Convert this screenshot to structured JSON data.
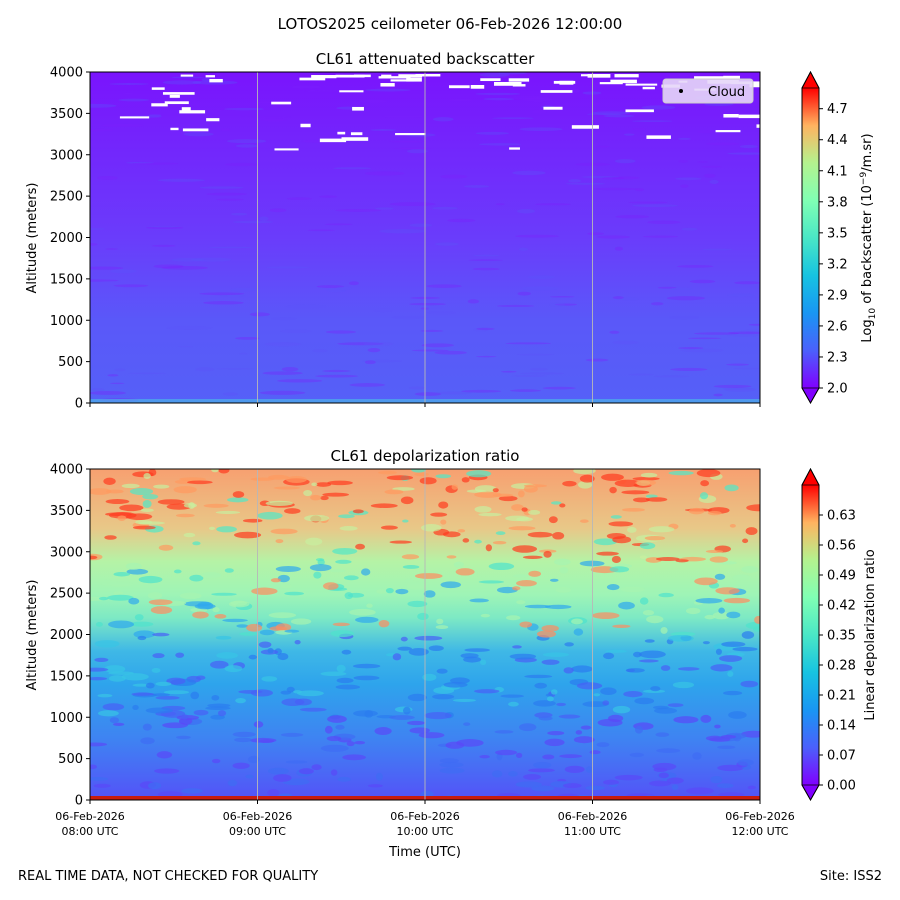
{
  "figure": {
    "suptitle": "LOTOS2025 ceilometer 06-Feb-2026 12:00:00",
    "footer_left": "REAL TIME DATA, NOT CHECKED FOR QUALITY",
    "footer_right": "Site: ISS2"
  },
  "chart_data": [
    {
      "type": "heatmap",
      "title": "CL61 attenuated backscatter",
      "xlabel": "",
      "ylabel": "Altitude (meters)",
      "x_range": [
        "06-Feb-2026 08:00 UTC",
        "06-Feb-2026 12:00 UTC"
      ],
      "ylim": [
        0,
        4000
      ],
      "yticks": [
        0,
        500,
        1000,
        1500,
        2000,
        2500,
        3000,
        3500,
        4000
      ],
      "grid": "vertical lines at hourly ticks",
      "colorbar": {
        "label_main": "Log",
        "label_sub": "10",
        "label_rest": " of backscatter (10",
        "label_exp": "−9",
        "label_end": "/m.sr)",
        "range": [
          2.0,
          4.9
        ],
        "ticks": [
          "2.0",
          "2.3",
          "2.6",
          "2.9",
          "3.2",
          "3.5",
          "3.8",
          "4.1",
          "4.4",
          "4.7"
        ],
        "colormap": "rainbow"
      },
      "legend": {
        "label": "Cloud",
        "location": "upper right"
      },
      "field_summary": [
        {
          "altitude_range": [
            0,
            1000
          ],
          "value": 2.35
        },
        {
          "altitude_range": [
            1000,
            1800
          ],
          "value": 2.2
        },
        {
          "altitude_range": [
            1800,
            4000
          ],
          "value": 2.05
        }
      ]
    },
    {
      "type": "heatmap",
      "title": "CL61 depolarization ratio",
      "xlabel": "Time (UTC)",
      "ylabel": "Altitude (meters)",
      "xticks": [
        {
          "date": "06-Feb-2026",
          "time": "08:00 UTC"
        },
        {
          "date": "06-Feb-2026",
          "time": "09:00 UTC"
        },
        {
          "date": "06-Feb-2026",
          "time": "10:00 UTC"
        },
        {
          "date": "06-Feb-2026",
          "time": "11:00 UTC"
        },
        {
          "date": "06-Feb-2026",
          "time": "12:00 UTC"
        }
      ],
      "ylim": [
        0,
        4000
      ],
      "yticks": [
        0,
        500,
        1000,
        1500,
        2000,
        2500,
        3000,
        3500,
        4000
      ],
      "grid": "vertical lines at hourly ticks",
      "colorbar": {
        "label": "Linear depolarization ratio",
        "range": [
          0.0,
          0.7
        ],
        "ticks": [
          "0.00",
          "0.07",
          "0.14",
          "0.21",
          "0.28",
          "0.35",
          "0.42",
          "0.49",
          "0.56",
          "0.63"
        ],
        "colormap": "rainbow"
      },
      "field_summary": [
        {
          "altitude_range": [
            0,
            50
          ],
          "value": 0.7
        },
        {
          "altitude_range": [
            50,
            1000
          ],
          "value": 0.1
        },
        {
          "altitude_range": [
            1000,
            2000
          ],
          "value": 0.17
        },
        {
          "altitude_range": [
            2000,
            2800
          ],
          "value": 0.3
        },
        {
          "altitude_range": [
            2800,
            4000
          ],
          "value": 0.5
        }
      ]
    }
  ]
}
